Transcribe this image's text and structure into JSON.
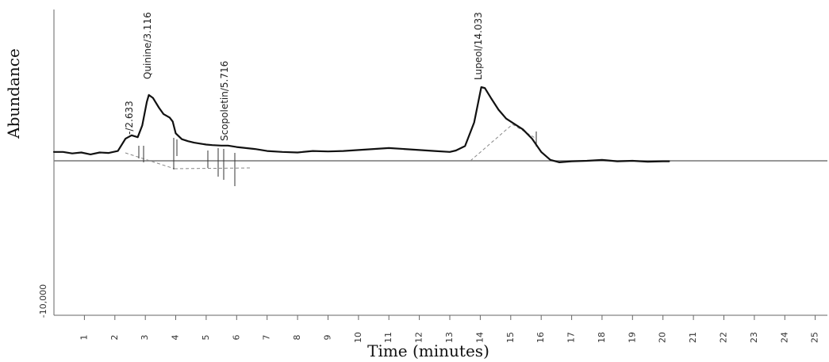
{
  "chart_data": {
    "type": "line",
    "title": "",
    "xlabel": "Time (minutes)",
    "ylabel": "Abundance",
    "xlim": [
      0,
      25.4
    ],
    "x_ticks": [
      1,
      2,
      3,
      4,
      5,
      6,
      7,
      8,
      9,
      10,
      11,
      12,
      13,
      14,
      15,
      16,
      17,
      18,
      19,
      20,
      21,
      22,
      23,
      24,
      25
    ],
    "x_tick_labels": [
      "1",
      "2",
      "3",
      "4",
      "5",
      "6",
      "7",
      "8",
      "9",
      "10",
      "11",
      "12",
      "13",
      "14",
      "15",
      "16",
      "17",
      "18",
      "19",
      "20",
      "21",
      "22",
      "23",
      "24",
      "25"
    ],
    "y_tick_label": "-10,000",
    "grid": false,
    "series": [
      {
        "points": [
          [
            0.0,
            18
          ],
          [
            0.3,
            18
          ],
          [
            0.6,
            15
          ],
          [
            0.9,
            17
          ],
          [
            1.2,
            13
          ],
          [
            1.5,
            17
          ],
          [
            1.8,
            16
          ],
          [
            2.1,
            20
          ],
          [
            2.35,
            45
          ],
          [
            2.55,
            52
          ],
          [
            2.75,
            48
          ],
          [
            2.9,
            72
          ],
          [
            3.05,
            120
          ],
          [
            3.116,
            134
          ],
          [
            3.25,
            128
          ],
          [
            3.45,
            108
          ],
          [
            3.6,
            95
          ],
          [
            3.8,
            88
          ],
          [
            3.9,
            80
          ],
          [
            4.0,
            56
          ],
          [
            4.2,
            44
          ],
          [
            4.4,
            40
          ],
          [
            4.6,
            37
          ],
          [
            4.8,
            35
          ],
          [
            5.0,
            33
          ],
          [
            5.2,
            32
          ],
          [
            5.5,
            31
          ],
          [
            5.716,
            31
          ],
          [
            6.0,
            28
          ],
          [
            6.3,
            26
          ],
          [
            6.6,
            24
          ],
          [
            7.0,
            20
          ],
          [
            7.5,
            18
          ],
          [
            8.0,
            17
          ],
          [
            8.5,
            20
          ],
          [
            9.0,
            19
          ],
          [
            9.5,
            20
          ],
          [
            10.0,
            22
          ],
          [
            10.5,
            24
          ],
          [
            11.0,
            26
          ],
          [
            11.5,
            24
          ],
          [
            12.0,
            22
          ],
          [
            12.5,
            20
          ],
          [
            13.0,
            18
          ],
          [
            13.2,
            21
          ],
          [
            13.5,
            30
          ],
          [
            13.8,
            78
          ],
          [
            14.033,
            150
          ],
          [
            14.15,
            148
          ],
          [
            14.35,
            128
          ],
          [
            14.6,
            104
          ],
          [
            14.85,
            86
          ],
          [
            15.1,
            76
          ],
          [
            15.4,
            64
          ],
          [
            15.7,
            45
          ],
          [
            16.0,
            18
          ],
          [
            16.3,
            2
          ],
          [
            16.6,
            -3
          ],
          [
            17.0,
            -1
          ],
          [
            17.5,
            0
          ],
          [
            18.0,
            2
          ],
          [
            18.5,
            -1
          ],
          [
            19.0,
            0
          ],
          [
            19.5,
            -2
          ],
          [
            20.0,
            -1
          ],
          [
            20.2,
            -1
          ]
        ]
      }
    ],
    "annotations": [
      {
        "text": "-/2.633",
        "x": 2.633
      },
      {
        "text": "Quinine/3.116",
        "x": 3.116
      },
      {
        "text": "Scopoletin/5.716",
        "x": 5.716
      },
      {
        "text": "Lupeol/14.033",
        "x": 14.033
      }
    ]
  }
}
